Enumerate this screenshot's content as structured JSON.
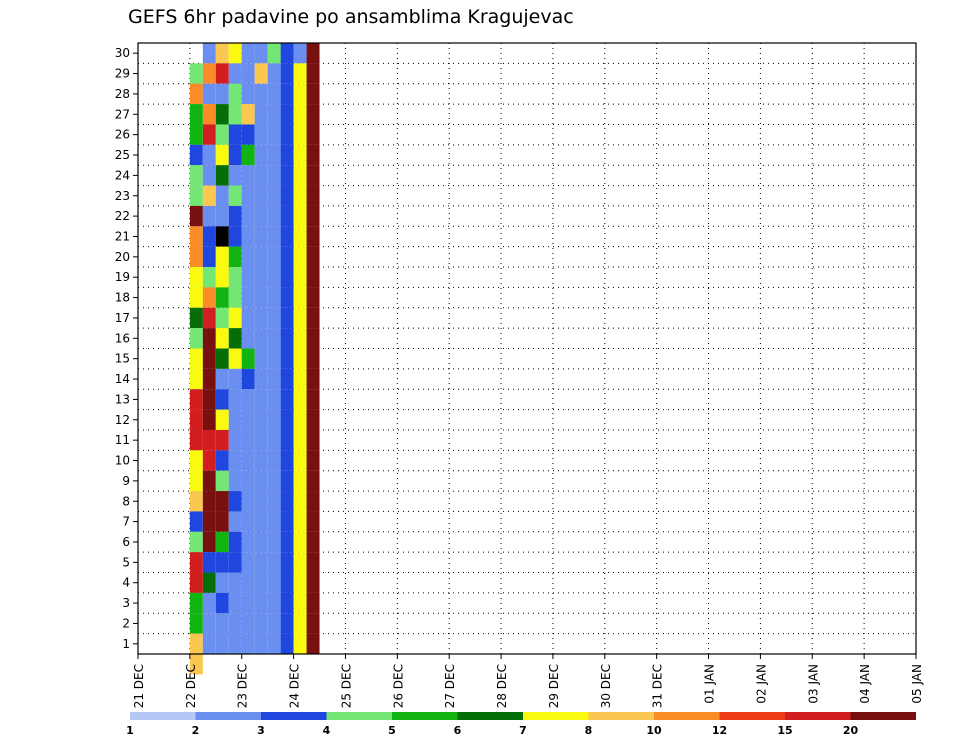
{
  "chart_data": {
    "type": "heatmap",
    "title": "GEFS 6hr padavine po ansamblima Kragujevac",
    "xlabel": "",
    "ylabel": "",
    "x_tick_labels": [
      "21 DEC",
      "22 DEC",
      "23 DEC",
      "24 DEC",
      "25 DEC",
      "26 DEC",
      "27 DEC",
      "28 DEC",
      "29 DEC",
      "30 DEC",
      "31 DEC",
      "01 JAN",
      "02 JAN",
      "03 JAN",
      "04 JAN",
      "05 JAN"
    ],
    "y_tick_labels": [
      "1",
      "2",
      "3",
      "4",
      "5",
      "6",
      "7",
      "8",
      "9",
      "10",
      "11",
      "12",
      "13",
      "14",
      "15",
      "16",
      "17",
      "18",
      "19",
      "20",
      "21",
      "22",
      "23",
      "24",
      "25",
      "26",
      "27",
      "28",
      "29",
      "30"
    ],
    "x_unit": "6-hour step from 22 DEC 00Z",
    "grid": true,
    "colorbar": {
      "labels": [
        "1",
        "2",
        "3",
        "4",
        "5",
        "6",
        "7",
        "8",
        "10",
        "12",
        "15",
        "20"
      ],
      "colors": [
        "#b4c8f5",
        "#6b8ff0",
        "#1f47e0",
        "#73e673",
        "#12b412",
        "#066e06",
        "#fafa10",
        "#fac850",
        "#fa8c28",
        "#f03c14",
        "#d21e1e",
        "#781010"
      ]
    },
    "cells": [
      [
        0,
        28,
        3
      ],
      [
        0,
        27,
        8
      ],
      [
        0,
        26,
        4
      ],
      [
        0,
        25,
        4
      ],
      [
        0,
        24,
        2
      ],
      [
        0,
        23,
        3
      ],
      [
        0,
        22,
        3
      ],
      [
        0,
        21,
        11
      ],
      [
        0,
        20,
        8
      ],
      [
        0,
        19,
        8
      ],
      [
        0,
        18,
        6
      ],
      [
        0,
        17,
        6
      ],
      [
        0,
        16,
        5
      ],
      [
        0,
        15,
        3
      ],
      [
        0,
        14,
        6
      ],
      [
        0,
        13,
        6
      ],
      [
        0,
        12,
        10
      ],
      [
        0,
        11,
        10
      ],
      [
        0,
        10,
        10
      ],
      [
        0,
        9,
        6
      ],
      [
        0,
        8,
        6
      ],
      [
        0,
        7,
        7
      ],
      [
        0,
        6,
        2
      ],
      [
        0,
        5,
        3
      ],
      [
        0,
        4,
        10
      ],
      [
        0,
        3,
        10
      ],
      [
        0,
        2,
        4
      ],
      [
        0,
        1,
        4
      ],
      [
        0,
        0,
        7
      ],
      [
        0,
        -1,
        7
      ],
      [
        1,
        29,
        1
      ],
      [
        1,
        28,
        8
      ],
      [
        1,
        27,
        1
      ],
      [
        1,
        26,
        8
      ],
      [
        1,
        25,
        10
      ],
      [
        1,
        24,
        1
      ],
      [
        1,
        23,
        1
      ],
      [
        1,
        22,
        7
      ],
      [
        1,
        21,
        1
      ],
      [
        1,
        20,
        2
      ],
      [
        1,
        19,
        2
      ],
      [
        1,
        18,
        3
      ],
      [
        1,
        17,
        8
      ],
      [
        1,
        16,
        10
      ],
      [
        1,
        15,
        11
      ],
      [
        1,
        14,
        11
      ],
      [
        1,
        13,
        11
      ],
      [
        1,
        12,
        11
      ],
      [
        1,
        11,
        11
      ],
      [
        1,
        10,
        10
      ],
      [
        1,
        9,
        10
      ],
      [
        1,
        8,
        11
      ],
      [
        1,
        7,
        11
      ],
      [
        1,
        6,
        11
      ],
      [
        1,
        5,
        11
      ],
      [
        1,
        4,
        2
      ],
      [
        1,
        3,
        5
      ],
      [
        1,
        2,
        1
      ],
      [
        1,
        1,
        1
      ],
      [
        1,
        0,
        1
      ],
      [
        2,
        29,
        7
      ],
      [
        2,
        28,
        10
      ],
      [
        2,
        27,
        1
      ],
      [
        2,
        26,
        5
      ],
      [
        2,
        25,
        3
      ],
      [
        2,
        24,
        6
      ],
      [
        2,
        23,
        5
      ],
      [
        2,
        22,
        1
      ],
      [
        2,
        21,
        1
      ],
      [
        2,
        20,
        12
      ],
      [
        2,
        19,
        6
      ],
      [
        2,
        18,
        6
      ],
      [
        2,
        17,
        4
      ],
      [
        2,
        16,
        3
      ],
      [
        2,
        15,
        6
      ],
      [
        2,
        14,
        5
      ],
      [
        2,
        13,
        1
      ],
      [
        2,
        12,
        2
      ],
      [
        2,
        11,
        6
      ],
      [
        2,
        10,
        10
      ],
      [
        2,
        9,
        2
      ],
      [
        2,
        8,
        3
      ],
      [
        2,
        7,
        11
      ],
      [
        2,
        6,
        11
      ],
      [
        2,
        5,
        4
      ],
      [
        2,
        4,
        2
      ],
      [
        2,
        3,
        1
      ],
      [
        2,
        2,
        2
      ],
      [
        2,
        1,
        1
      ],
      [
        2,
        0,
        1
      ],
      [
        3,
        29,
        6
      ],
      [
        3,
        28,
        1
      ],
      [
        3,
        27,
        3
      ],
      [
        3,
        26,
        3
      ],
      [
        3,
        25,
        2
      ],
      [
        3,
        24,
        2
      ],
      [
        3,
        23,
        1
      ],
      [
        3,
        22,
        3
      ],
      [
        3,
        21,
        2
      ],
      [
        3,
        20,
        2
      ],
      [
        3,
        19,
        4
      ],
      [
        3,
        18,
        3
      ],
      [
        3,
        17,
        3
      ],
      [
        3,
        16,
        6
      ],
      [
        3,
        15,
        5
      ],
      [
        3,
        14,
        6
      ],
      [
        3,
        13,
        1
      ],
      [
        3,
        12,
        1
      ],
      [
        3,
        11,
        1
      ],
      [
        3,
        10,
        1
      ],
      [
        3,
        9,
        1
      ],
      [
        3,
        8,
        1
      ],
      [
        3,
        7,
        2
      ],
      [
        3,
        6,
        1
      ],
      [
        3,
        5,
        2
      ],
      [
        3,
        4,
        2
      ],
      [
        3,
        3,
        1
      ],
      [
        3,
        2,
        1
      ],
      [
        3,
        1,
        1
      ],
      [
        3,
        0,
        1
      ],
      [
        4,
        29,
        1
      ],
      [
        4,
        28,
        1
      ],
      [
        4,
        27,
        1
      ],
      [
        4,
        26,
        7
      ],
      [
        4,
        25,
        2
      ],
      [
        4,
        24,
        4
      ],
      [
        4,
        23,
        1
      ],
      [
        4,
        22,
        1
      ],
      [
        4,
        21,
        1
      ],
      [
        4,
        20,
        1
      ],
      [
        4,
        19,
        1
      ],
      [
        4,
        18,
        1
      ],
      [
        4,
        17,
        1
      ],
      [
        4,
        16,
        1
      ],
      [
        4,
        15,
        1
      ],
      [
        4,
        14,
        4
      ],
      [
        4,
        13,
        2
      ],
      [
        4,
        12,
        1
      ],
      [
        4,
        11,
        1
      ],
      [
        4,
        10,
        1
      ],
      [
        4,
        9,
        1
      ],
      [
        4,
        8,
        1
      ],
      [
        4,
        7,
        1
      ],
      [
        4,
        6,
        1
      ],
      [
        4,
        5,
        1
      ],
      [
        4,
        4,
        1
      ],
      [
        4,
        3,
        1
      ],
      [
        4,
        2,
        1
      ],
      [
        4,
        1,
        1
      ],
      [
        4,
        0,
        1
      ],
      [
        5,
        29,
        1
      ],
      [
        5,
        28,
        7
      ],
      [
        5,
        27,
        1
      ],
      [
        5,
        26,
        1
      ],
      [
        5,
        25,
        1
      ],
      [
        5,
        24,
        1
      ],
      [
        5,
        23,
        1
      ],
      [
        5,
        22,
        1
      ],
      [
        5,
        21,
        1
      ],
      [
        5,
        20,
        1
      ],
      [
        5,
        19,
        1
      ],
      [
        5,
        18,
        1
      ],
      [
        5,
        17,
        1
      ],
      [
        5,
        16,
        1
      ],
      [
        5,
        15,
        1
      ],
      [
        5,
        14,
        1
      ],
      [
        5,
        13,
        1
      ],
      [
        5,
        12,
        1
      ],
      [
        5,
        11,
        1
      ],
      [
        5,
        10,
        1
      ],
      [
        5,
        9,
        1
      ],
      [
        5,
        8,
        1
      ],
      [
        5,
        7,
        1
      ],
      [
        5,
        6,
        1
      ],
      [
        5,
        5,
        1
      ],
      [
        5,
        4,
        1
      ],
      [
        5,
        3,
        1
      ],
      [
        5,
        2,
        1
      ],
      [
        5,
        1,
        1
      ],
      [
        5,
        0,
        1
      ],
      [
        6,
        29,
        3
      ],
      [
        6,
        28,
        1
      ],
      [
        6,
        27,
        1
      ],
      [
        6,
        26,
        1
      ],
      [
        6,
        25,
        1
      ],
      [
        6,
        24,
        1
      ],
      [
        6,
        23,
        1
      ],
      [
        6,
        22,
        1
      ],
      [
        6,
        21,
        1
      ],
      [
        6,
        20,
        1
      ],
      [
        6,
        19,
        1
      ],
      [
        6,
        18,
        1
      ],
      [
        6,
        17,
        1
      ],
      [
        6,
        16,
        1
      ],
      [
        6,
        15,
        1
      ],
      [
        6,
        14,
        1
      ],
      [
        6,
        13,
        1
      ],
      [
        6,
        12,
        1
      ],
      [
        6,
        11,
        1
      ],
      [
        6,
        10,
        1
      ],
      [
        6,
        9,
        1
      ],
      [
        6,
        8,
        1
      ],
      [
        6,
        7,
        1
      ],
      [
        6,
        6,
        1
      ],
      [
        6,
        5,
        1
      ],
      [
        6,
        4,
        1
      ],
      [
        6,
        3,
        1
      ],
      [
        6,
        2,
        1
      ],
      [
        6,
        1,
        1
      ],
      [
        6,
        0,
        1
      ],
      [
        7,
        29,
        2
      ],
      [
        7,
        28,
        2
      ],
      [
        7,
        27,
        2
      ],
      [
        7,
        26,
        2
      ],
      [
        7,
        25,
        2
      ],
      [
        7,
        24,
        2
      ],
      [
        7,
        23,
        2
      ],
      [
        7,
        22,
        2
      ],
      [
        7,
        21,
        2
      ],
      [
        7,
        20,
        2
      ],
      [
        7,
        19,
        2
      ],
      [
        7,
        18,
        2
      ],
      [
        7,
        17,
        2
      ],
      [
        7,
        16,
        2
      ],
      [
        7,
        15,
        2
      ],
      [
        7,
        14,
        2
      ],
      [
        7,
        13,
        2
      ],
      [
        7,
        12,
        2
      ],
      [
        7,
        11,
        2
      ],
      [
        7,
        10,
        2
      ],
      [
        7,
        9,
        2
      ],
      [
        7,
        8,
        2
      ],
      [
        7,
        7,
        2
      ],
      [
        7,
        6,
        2
      ],
      [
        7,
        5,
        2
      ],
      [
        7,
        4,
        2
      ],
      [
        7,
        3,
        2
      ],
      [
        7,
        2,
        2
      ],
      [
        7,
        1,
        2
      ],
      [
        7,
        0,
        2
      ],
      [
        8,
        29,
        1
      ],
      [
        8,
        28,
        6
      ],
      [
        8,
        27,
        6
      ],
      [
        8,
        26,
        6
      ],
      [
        8,
        25,
        6
      ],
      [
        8,
        24,
        6
      ],
      [
        8,
        23,
        6
      ],
      [
        8,
        22,
        6
      ],
      [
        8,
        21,
        6
      ],
      [
        8,
        20,
        6
      ],
      [
        8,
        19,
        6
      ],
      [
        8,
        18,
        6
      ],
      [
        8,
        17,
        6
      ],
      [
        8,
        16,
        6
      ],
      [
        8,
        15,
        6
      ],
      [
        8,
        14,
        6
      ],
      [
        8,
        13,
        6
      ],
      [
        8,
        12,
        6
      ],
      [
        8,
        11,
        6
      ],
      [
        8,
        10,
        6
      ],
      [
        8,
        9,
        6
      ],
      [
        8,
        8,
        6
      ],
      [
        8,
        7,
        6
      ],
      [
        8,
        6,
        6
      ],
      [
        8,
        5,
        6
      ],
      [
        8,
        4,
        6
      ],
      [
        8,
        3,
        6
      ],
      [
        8,
        2,
        6
      ],
      [
        8,
        1,
        6
      ],
      [
        8,
        0,
        6
      ],
      [
        9,
        29,
        11
      ],
      [
        9,
        28,
        11
      ],
      [
        9,
        27,
        11
      ],
      [
        9,
        26,
        11
      ],
      [
        9,
        25,
        11
      ],
      [
        9,
        24,
        11
      ],
      [
        9,
        23,
        11
      ],
      [
        9,
        22,
        11
      ],
      [
        9,
        21,
        11
      ],
      [
        9,
        20,
        11
      ],
      [
        9,
        19,
        11
      ],
      [
        9,
        18,
        11
      ],
      [
        9,
        17,
        11
      ],
      [
        9,
        16,
        11
      ],
      [
        9,
        15,
        11
      ],
      [
        9,
        14,
        11
      ],
      [
        9,
        13,
        11
      ],
      [
        9,
        12,
        11
      ],
      [
        9,
        11,
        11
      ],
      [
        9,
        10,
        11
      ],
      [
        9,
        9,
        11
      ],
      [
        9,
        8,
        11
      ],
      [
        9,
        7,
        11
      ],
      [
        9,
        6,
        11
      ],
      [
        9,
        5,
        11
      ],
      [
        9,
        4,
        11
      ],
      [
        9,
        3,
        11
      ],
      [
        9,
        2,
        11
      ],
      [
        9,
        1,
        11
      ],
      [
        9,
        0,
        11
      ]
    ]
  }
}
